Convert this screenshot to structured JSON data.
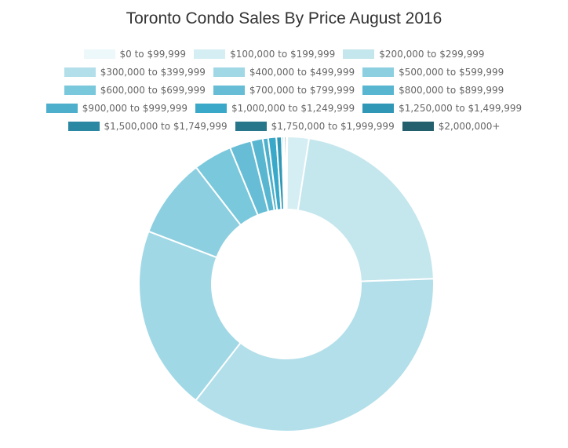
{
  "chart_data": {
    "type": "pie",
    "title": "Toronto Condo Sales By Price August 2016",
    "legend_position": "top",
    "categories": [
      "$0 to $99,999",
      "$100,000 to $199,999",
      "$200,000 to $299,999",
      "$300,000 to $399,999",
      "$400,000 to $499,999",
      "$500,000 to $599,999",
      "$600,000 to $699,999",
      "$700,000 to $799,999",
      "$800,000 to $899,999",
      "$900,000 to $999,999",
      "$1,000,000 to $1,249,999",
      "$1,250,000 to $1,499,999",
      "$1,500,000 to $1,749,999",
      "$1,750,000 to $1,999,999",
      "$2,000,000+"
    ],
    "values": [
      0.1,
      2.4,
      22.2,
      36.5,
      20.5,
      8.8,
      4.3,
      2.4,
      1.3,
      0.6,
      0.9,
      0.6,
      0.2,
      0.1,
      0.2
    ],
    "colors": [
      "#edf8fa",
      "#d5eef3",
      "#c4e6ed",
      "#b2dfea",
      "#a1d8e6",
      "#8ccfe0",
      "#7ac8dc",
      "#66bdd5",
      "#58b6d1",
      "#4dafcc",
      "#3aa8c8",
      "#3098b6",
      "#2b88a2",
      "#287689",
      "#235f6d"
    ]
  }
}
